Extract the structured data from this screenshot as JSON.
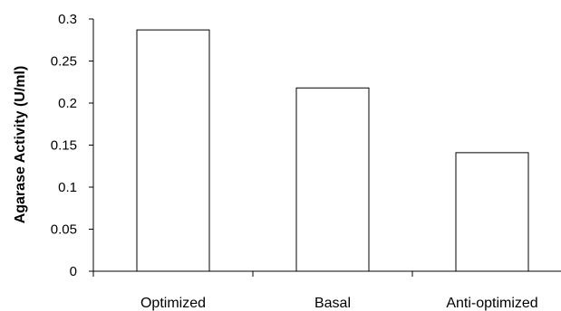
{
  "chart_data": {
    "type": "bar",
    "title": "",
    "xlabel": "",
    "ylabel": "Agarase Activity (U/ml)",
    "categories": [
      "Optimized",
      "Basal",
      "Anti-optimized"
    ],
    "values": [
      0.287,
      0.218,
      0.141
    ],
    "ylim": [
      0,
      0.3
    ],
    "yticks": [
      "0",
      "0.05",
      "0.1",
      "0.15",
      "0.2",
      "0.25",
      "0.3"
    ],
    "grid": false,
    "legend": "none",
    "bar_fill": "#ffffff",
    "bar_stroke": "#000000"
  }
}
